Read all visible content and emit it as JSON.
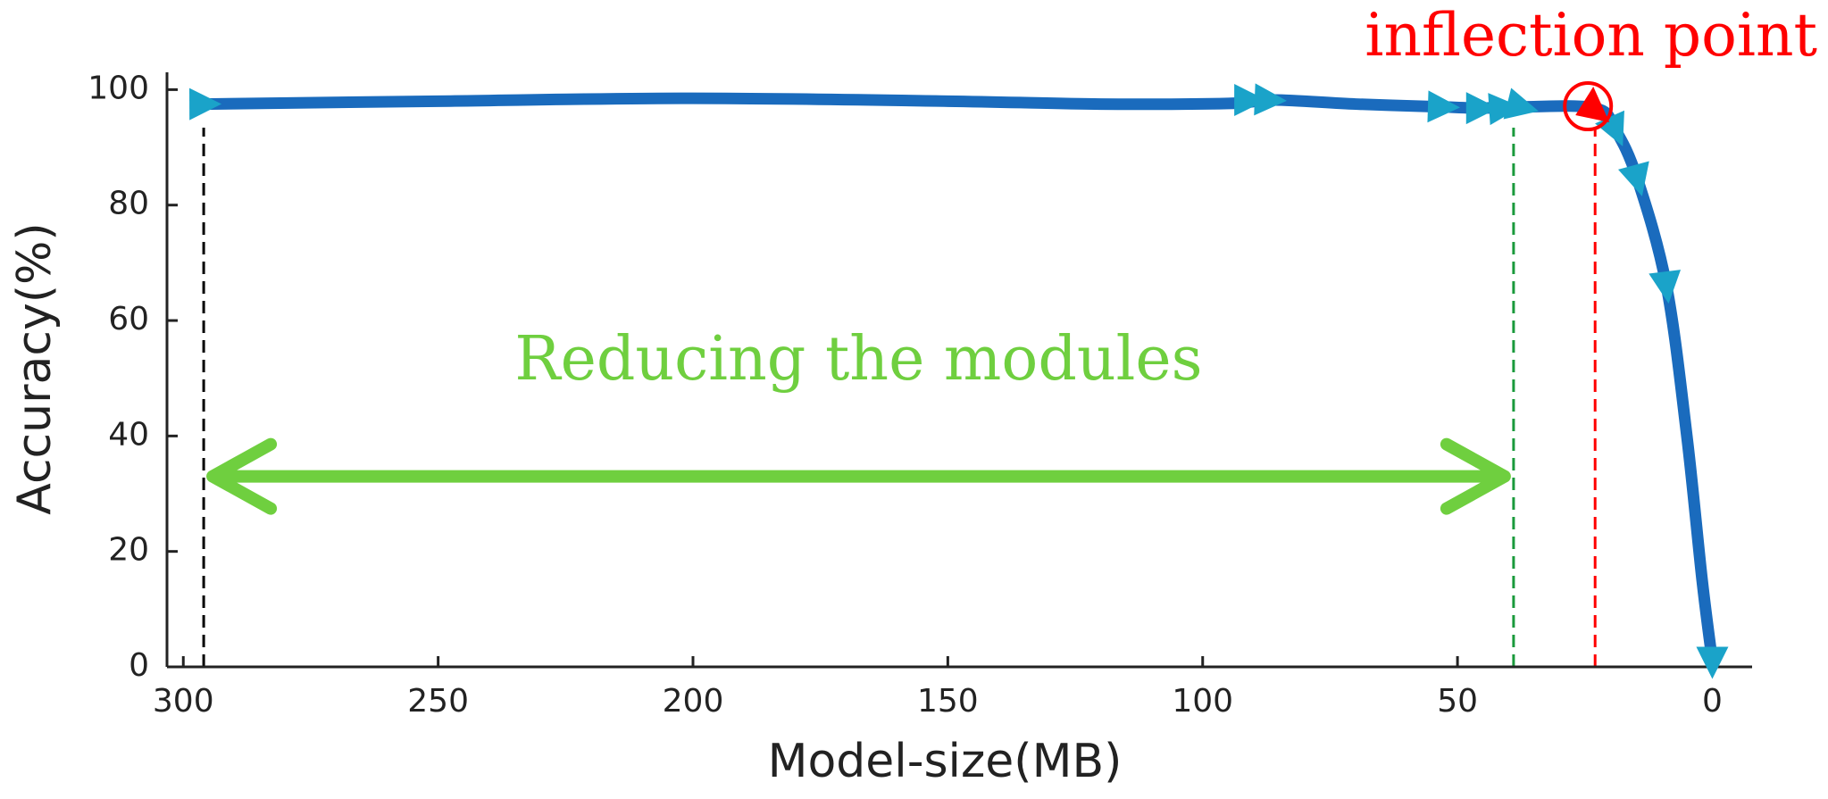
{
  "chart_data": {
    "type": "line",
    "xlabel": "Model-size(MB)",
    "ylabel": "Accuracy(%)",
    "xlim": [
      303.2,
      -7.8
    ],
    "ylim": [
      0,
      103
    ],
    "xticks": [
      300,
      250,
      200,
      150,
      100,
      50,
      0
    ],
    "yticks": [
      0,
      20,
      40,
      60,
      80,
      100
    ],
    "line": {
      "color": "#1a6bbd",
      "x": [
        296,
        250,
        200,
        150,
        120,
        95,
        86,
        70,
        53,
        45,
        38,
        23,
        19,
        14.7,
        9,
        5,
        2,
        0
      ],
      "values": [
        97.5,
        98,
        98.5,
        98,
        97.5,
        97.6,
        98.2,
        97.5,
        97,
        96.8,
        97,
        96.8,
        93,
        84.5,
        66,
        40,
        15,
        1
      ]
    },
    "points": {
      "color": "#1aa3c9",
      "x": [
        296,
        91,
        87,
        53,
        45.5,
        41,
        37.5,
        19,
        14.7,
        9,
        0
      ],
      "values": [
        97.5,
        98.2,
        98.2,
        97,
        96.8,
        96.8,
        97,
        93,
        84.5,
        66,
        1
      ]
    },
    "inflection": {
      "text": "inflection point",
      "x": 23,
      "y": 96.5,
      "color": "#ff0000"
    },
    "vlines": [
      {
        "x": 296,
        "color": "#000000"
      },
      {
        "x": 39,
        "color": "#1a9a3c"
      },
      {
        "x": 23,
        "color": "#ff0000"
      }
    ],
    "range_arrow": {
      "text": "Reducing the modules",
      "from": 296,
      "to": 39,
      "y": 33,
      "color": "#6fcf3f"
    }
  }
}
